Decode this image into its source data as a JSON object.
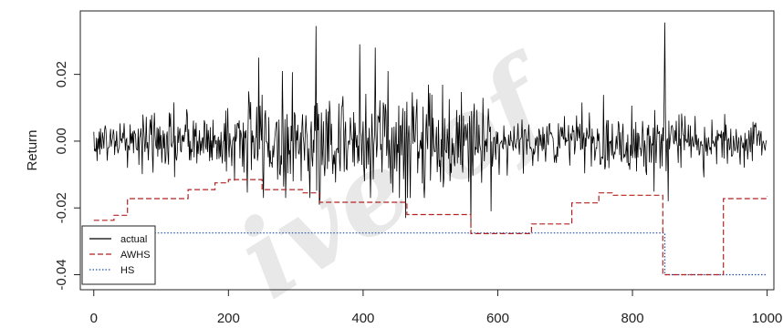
{
  "chart_data": {
    "type": "line",
    "title": "",
    "xlabel": "",
    "ylabel": "Return",
    "xlim": [
      -20,
      1010
    ],
    "ylim": [
      -0.0445,
      0.039
    ],
    "x_ticks": [
      0,
      200,
      400,
      600,
      800,
      1000
    ],
    "y_ticks": [
      -0.04,
      -0.02,
      0.0,
      0.02
    ],
    "y_tick_labels": [
      "-0.04",
      "-0.02",
      "0.00",
      "0.02"
    ],
    "grid": false,
    "legend_position": "bottom-left",
    "series": [
      {
        "name": "actual",
        "color": "#000000",
        "style": "solid",
        "n": 1000,
        "volatility_profile": [
          [
            0,
            0.003
          ],
          [
            100,
            0.0045
          ],
          [
            200,
            0.005
          ],
          [
            240,
            0.008
          ],
          [
            450,
            0.008
          ],
          [
            500,
            0.009
          ],
          [
            600,
            0.004
          ],
          [
            700,
            0.004
          ],
          [
            760,
            0.005
          ],
          [
            840,
            0.006
          ],
          [
            860,
            0.0045
          ],
          [
            1000,
            0.003
          ]
        ],
        "extremes": [
          {
            "x": 330,
            "y": 0.0345
          },
          {
            "x": 848,
            "y": 0.0355
          },
          {
            "x": 560,
            "y": -0.026
          },
          {
            "x": 463,
            "y": -0.023
          },
          {
            "x": 590,
            "y": -0.021
          },
          {
            "x": 335,
            "y": -0.019
          },
          {
            "x": 853,
            "y": -0.018
          },
          {
            "x": 245,
            "y": 0.025
          },
          {
            "x": 395,
            "y": 0.029
          },
          {
            "x": 418,
            "y": 0.028
          }
        ]
      },
      {
        "name": "AWHS",
        "color": "#b22222",
        "style": "dashed",
        "steps": [
          [
            0,
            -0.0237
          ],
          [
            30,
            -0.0222
          ],
          [
            50,
            -0.0172
          ],
          [
            140,
            -0.0145
          ],
          [
            180,
            -0.0125
          ],
          [
            200,
            -0.0115
          ],
          [
            250,
            -0.0145
          ],
          [
            310,
            -0.0155
          ],
          [
            335,
            -0.0183
          ],
          [
            465,
            -0.022
          ],
          [
            560,
            -0.0277
          ],
          [
            650,
            -0.0248
          ],
          [
            710,
            -0.0185
          ],
          [
            750,
            -0.0155
          ],
          [
            770,
            -0.0162
          ],
          [
            845,
            -0.04
          ],
          [
            935,
            -0.0172
          ],
          [
            1000,
            -0.0165
          ]
        ]
      },
      {
        "name": "HS",
        "color": "#1e4ea8",
        "style": "dotted",
        "steps": [
          [
            0,
            -0.0275
          ],
          [
            848,
            -0.04
          ],
          [
            1000,
            -0.04
          ]
        ]
      }
    ]
  }
}
